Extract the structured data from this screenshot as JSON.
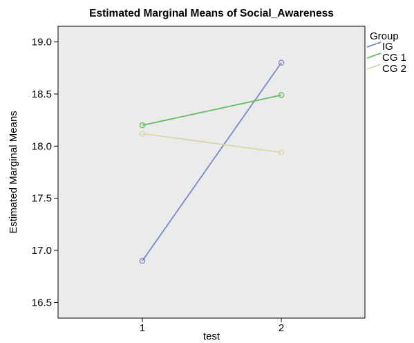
{
  "chart_data": {
    "type": "line",
    "title": "Estimated Marginal Means of Social_Awareness",
    "xlabel": "test",
    "ylabel": "Estimated Marginal Means",
    "categories": [
      "1",
      "2"
    ],
    "ylim": [
      16.35,
      19.15
    ],
    "yticks": [
      "16.5",
      "17.0",
      "17.5",
      "18.0",
      "18.5",
      "19.0"
    ],
    "grid": false,
    "plot_background": "#ebebeb",
    "legend": {
      "title": "Group",
      "placement": "right"
    },
    "series": [
      {
        "name": "IG",
        "values": [
          16.9,
          18.8
        ],
        "color": "#7b86c8"
      },
      {
        "name": "CG 1",
        "values": [
          18.2,
          18.49
        ],
        "color": "#5fbf5f"
      },
      {
        "name": "CG 2",
        "values": [
          18.12,
          17.94
        ],
        "color": "#d9d6a4"
      }
    ]
  }
}
